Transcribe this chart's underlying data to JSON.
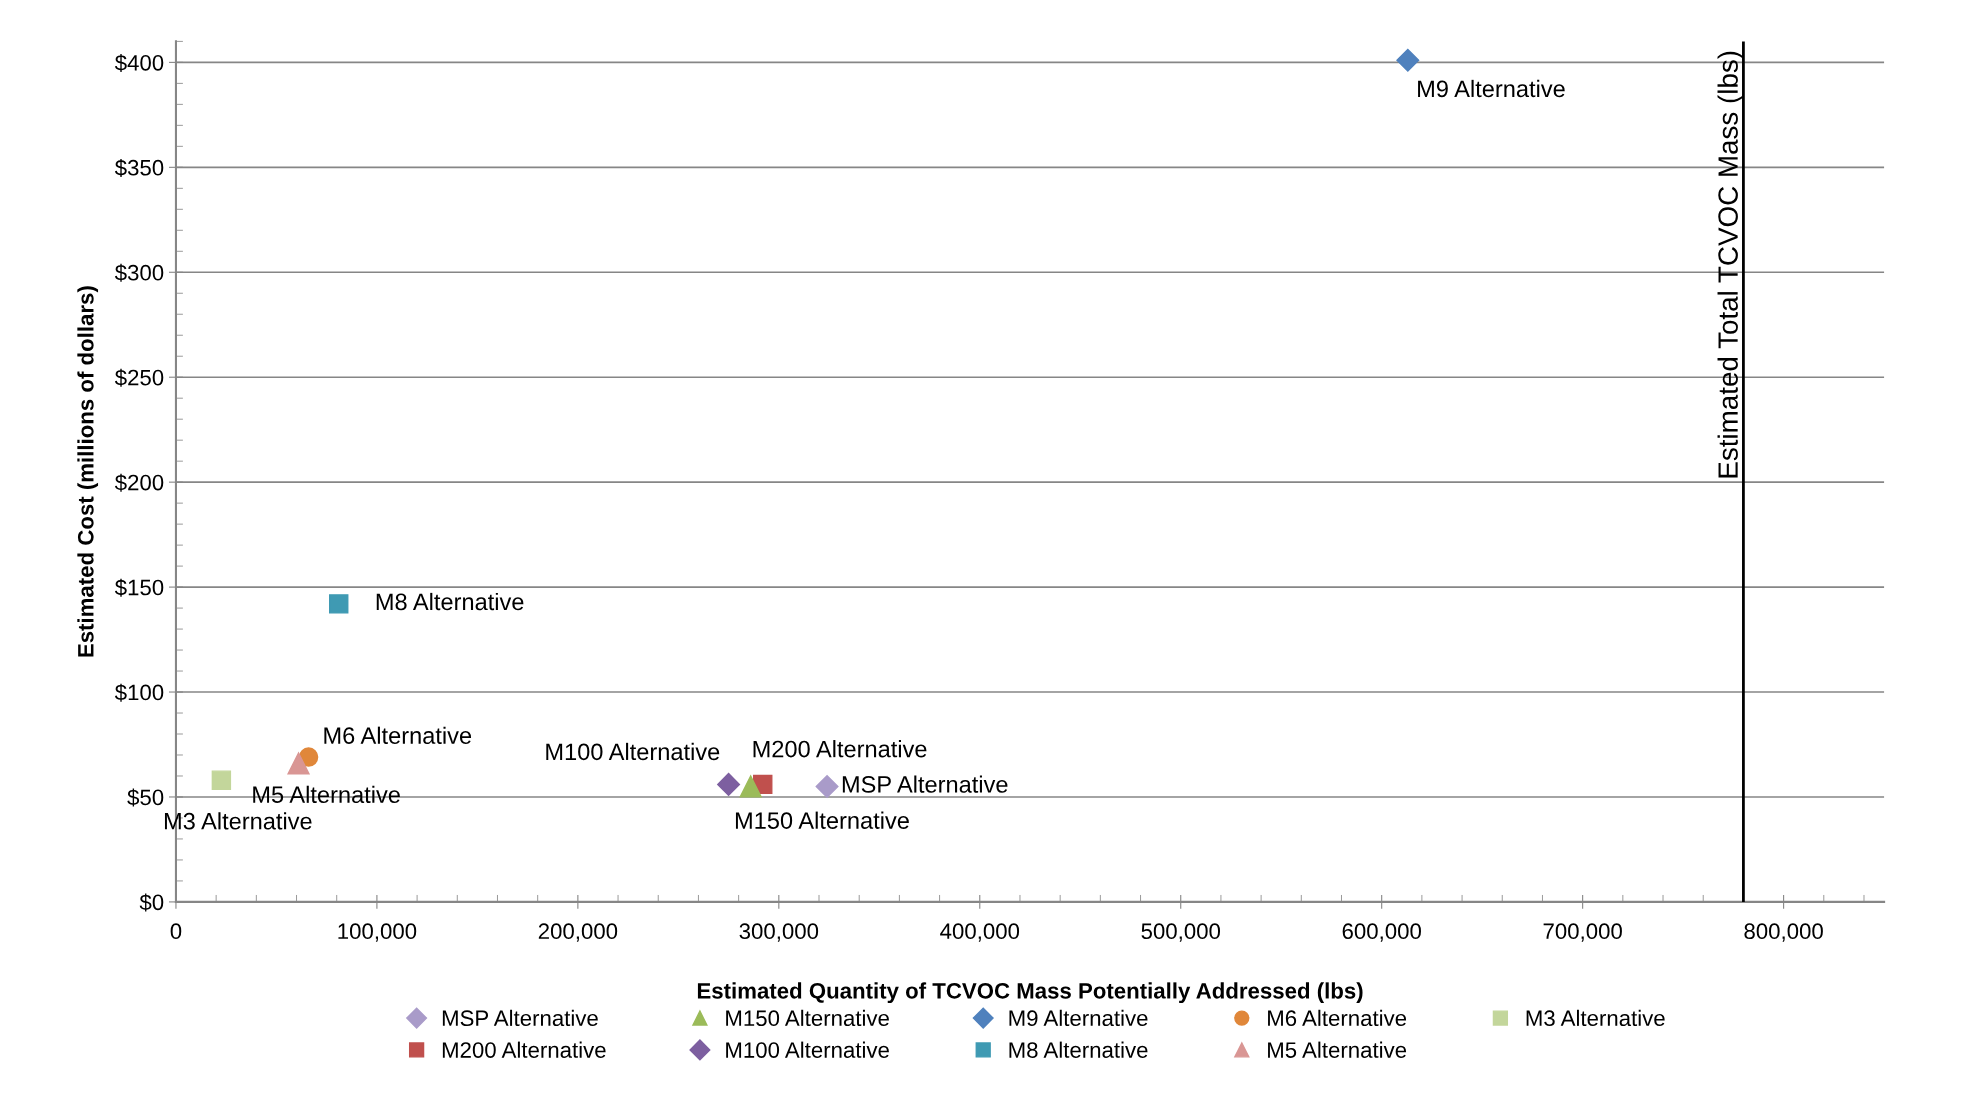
{
  "chart_data": {
    "type": "scatter",
    "xlabel": "Estimated Quantity of TCVOC Mass Potentially Addressed (lbs)",
    "ylabel": "Estimated Cost (millions of dollars)",
    "series": [
      {
        "name": "MSP Alternative",
        "color": "#a99bc9",
        "marker": "diamond",
        "x": [
          324000
        ],
        "values": [
          55
        ]
      },
      {
        "name": "M200 Alternative",
        "color": "#c0504d",
        "marker": "square",
        "x": [
          292000
        ],
        "values": [
          56
        ]
      },
      {
        "name": "M150 Alternative",
        "color": "#9bbb59",
        "marker": "triangle",
        "x": [
          286000
        ],
        "values": [
          55
        ]
      },
      {
        "name": "M100 Alternative",
        "color": "#7d5fa0",
        "marker": "diamond",
        "x": [
          275000
        ],
        "values": [
          56
        ]
      },
      {
        "name": "M9 Alternative",
        "color": "#4f81bd",
        "marker": "diamond",
        "x": [
          613000
        ],
        "values": [
          401
        ]
      },
      {
        "name": "M8 Alternative",
        "color": "#3f9ab3",
        "marker": "square",
        "x": [
          81000
        ],
        "values": [
          142
        ]
      },
      {
        "name": "M6 Alternative",
        "color": "#e0873a",
        "marker": "circle",
        "x": [
          66000
        ],
        "values": [
          69
        ]
      },
      {
        "name": "M5 Alternative",
        "color": "#d99694",
        "marker": "triangle",
        "x": [
          61000
        ],
        "values": [
          66
        ]
      },
      {
        "name": "M3 Alternative",
        "color": "#c3d69b",
        "marker": "square",
        "x": [
          22600
        ],
        "values": [
          58
        ]
      }
    ],
    "annotations": [
      {
        "text": "MSP Alternative",
        "x": 324000,
        "y": 55
      },
      {
        "text": "M200 Alternative",
        "x": 292000,
        "y": 56
      },
      {
        "text": "M150 Alternative",
        "x": 286000,
        "y": 55
      },
      {
        "text": "M100 Alternative",
        "x": 275000,
        "y": 56
      },
      {
        "text": "M9 Alternative",
        "x": 613000,
        "y": 401
      },
      {
        "text": "M8 Alternative",
        "x": 81000,
        "y": 142
      },
      {
        "text": "M6 Alternative",
        "x": 66000,
        "y": 69
      },
      {
        "text": "M5 Alternative",
        "x": 61000,
        "y": 66
      },
      {
        "text": "M3 Alternative",
        "x": 22600,
        "y": 58
      }
    ],
    "ref_lines": [
      {
        "axis": "x",
        "value": 780000,
        "label": "Estimated Total TCVOC Mass (lbs)",
        "color": "#000000"
      }
    ],
    "xlim": [
      0,
      850000
    ],
    "xticks": [
      0,
      {
        "value": 100000,
        "label": "100,000"
      },
      {
        "value": 200000,
        "label": "200,000"
      },
      {
        "value": 300000,
        "label": "300,000"
      },
      {
        "value": 400000,
        "label": "400,000"
      },
      {
        "value": 500000,
        "label": "500,000"
      },
      {
        "value": 600000,
        "label": "600,000"
      },
      {
        "value": 700000,
        "label": "700,000"
      },
      {
        "value": 800000,
        "label": "800,000"
      }
    ],
    "ylim": [
      0,
      410
    ],
    "yticks": [
      {
        "value": 0,
        "label": "$0"
      },
      {
        "value": 50,
        "label": "$50"
      },
      {
        "value": 100,
        "label": "$100"
      },
      {
        "value": 150,
        "label": "$150"
      },
      {
        "value": 200,
        "label": "$200"
      },
      {
        "value": 250,
        "label": "$250"
      },
      {
        "value": 300,
        "label": "$300"
      },
      {
        "value": 350,
        "label": "$350"
      },
      {
        "value": 400,
        "label": "$400"
      }
    ],
    "grid": "y",
    "legend": "bottom"
  }
}
